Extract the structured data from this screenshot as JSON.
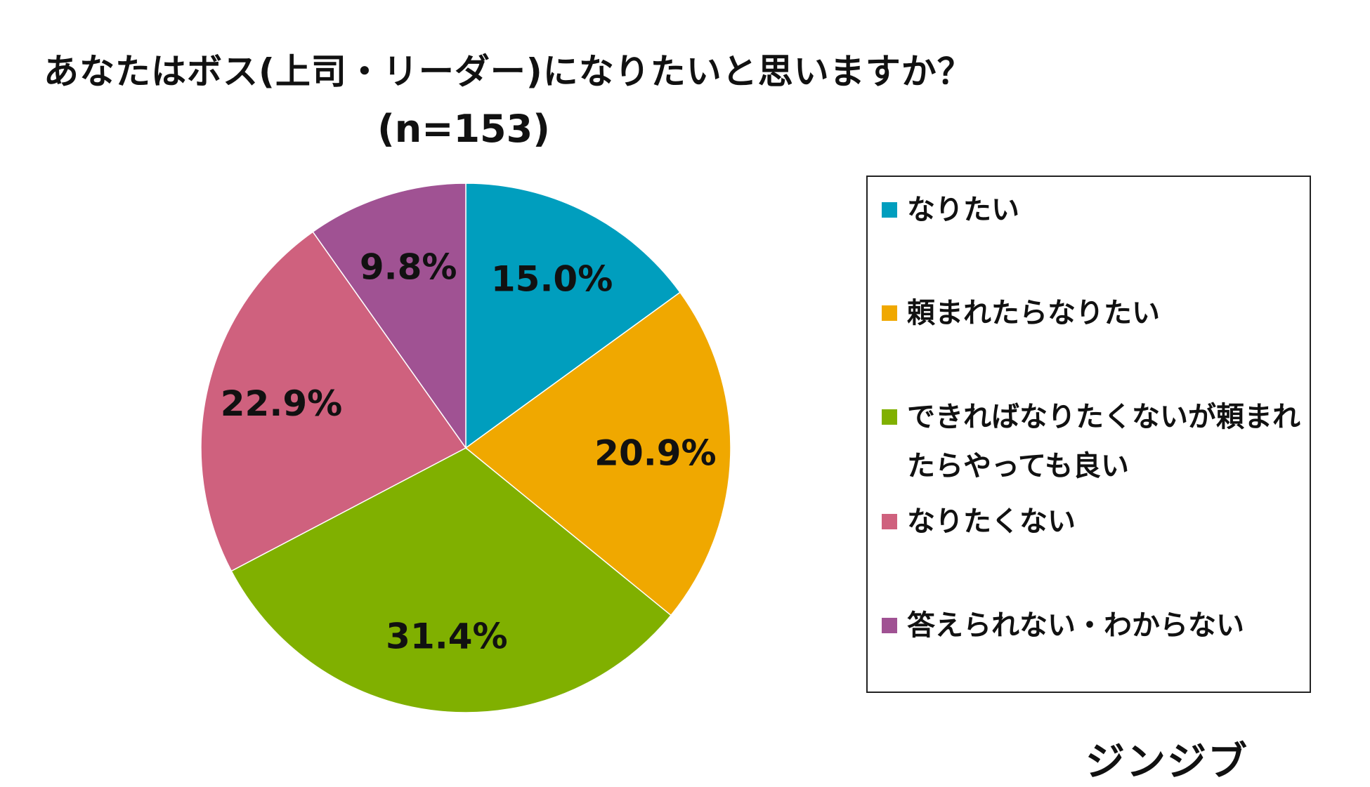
{
  "header": {
    "title": "あなたはボス(上司・リーダー)になりたいと思いますか？",
    "subtitle": "(n=153)"
  },
  "chart_data": {
    "type": "pie",
    "title": "あなたはボス(上司・リーダー)になりたいと思いますか？",
    "subtitle": "(n=153)",
    "start": "12 o'clock, clockwise",
    "legend_position": "right",
    "slices": [
      {
        "name": "なりたい",
        "value": 15.0,
        "label": "15.0%",
        "color": "#009EBE"
      },
      {
        "name": "頼まれたらなりたい",
        "value": 20.9,
        "label": "20.9%",
        "color": "#F0A800"
      },
      {
        "name": "できればなりたくないが頼まれたらやっても良い",
        "value": 31.4,
        "label": "31.4%",
        "color": "#80B000"
      },
      {
        "name": "なりたくない",
        "value": 22.9,
        "label": "22.9%",
        "color": "#CF617E"
      },
      {
        "name": "答えられない・わからない",
        "value": 9.8,
        "label": "9.8%",
        "color": "#A05293"
      }
    ]
  },
  "legend": {
    "items": [
      {
        "label": "なりたい"
      },
      {
        "label": "頼まれたらなりたい"
      },
      {
        "label": "できればなりたくないが頼まれたらやっても良い"
      },
      {
        "label": "なりたくない"
      },
      {
        "label": "答えられない・わからない"
      }
    ]
  },
  "brand": {
    "logo_text": "ジンジブ"
  }
}
